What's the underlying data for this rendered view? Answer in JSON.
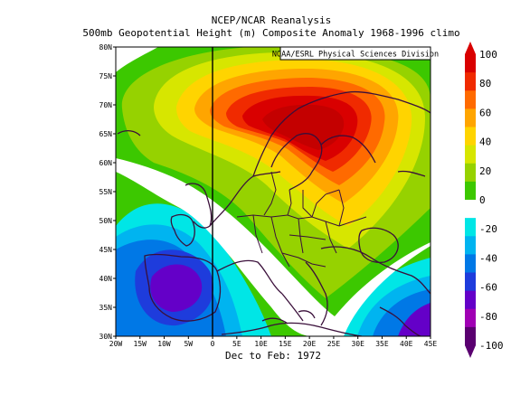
{
  "header": {
    "title": "NCEP/NCAR Reanalysis",
    "subtitle": "500mb Geopotential Height (m) Composite Anomaly 1968-1996 climo"
  },
  "map": {
    "credit": "NOAA/ESRL Physical Sciences Division",
    "season": "Dec to Feb: 1972",
    "lat_labels": [
      "80N",
      "75N",
      "70N",
      "65N",
      "60N",
      "55N",
      "50N",
      "45N",
      "40N",
      "35N",
      "30N"
    ],
    "lon_labels": [
      "20W",
      "15W",
      "10W",
      "5W",
      "0",
      "5E",
      "10E",
      "15E",
      "20E",
      "25E",
      "30E",
      "35E",
      "40E",
      "45E"
    ],
    "lat_range": [
      30,
      80
    ],
    "lon_range": [
      -20,
      45
    ],
    "anomaly_centers": [
      {
        "lat": 66,
        "lon": 20,
        "value": 100
      },
      {
        "lat": 39,
        "lon": -8,
        "value": -60
      },
      {
        "lat": 35,
        "lon": 43,
        "value": -60
      }
    ]
  },
  "colorbar": {
    "labels": [
      "100",
      "80",
      "60",
      "40",
      "20",
      "0",
      "-20",
      "-40",
      "-60",
      "-80",
      "-100"
    ],
    "colors": [
      "#d90000",
      "#f02a00",
      "#ff6a00",
      "#ffa500",
      "#ffd400",
      "#d7e600",
      "#96d200",
      "#3cc800",
      "#ffffff",
      "#00e6e6",
      "#00b4f0",
      "#0078e6",
      "#1e3cdc",
      "#6400c8",
      "#a000b4",
      "#5a0070"
    ]
  }
}
